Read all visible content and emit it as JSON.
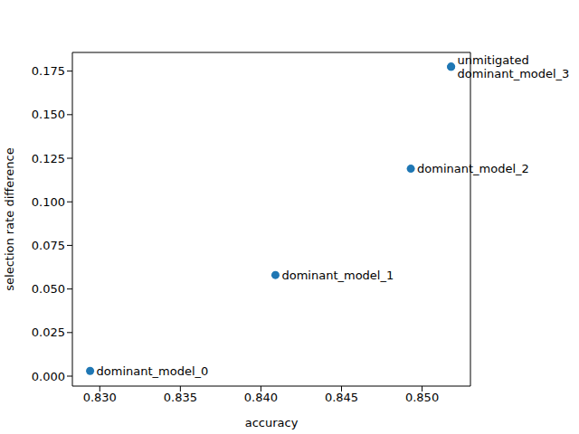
{
  "chart_data": {
    "type": "scatter",
    "xlabel": "accuracy",
    "ylabel": "selection rate difference",
    "x": [
      0.8518,
      0.8294,
      0.8409,
      0.8493,
      0.8518
    ],
    "values": [
      0.1775,
      0.003,
      0.058,
      0.119,
      0.1775
    ],
    "labels": [
      "unmitigated",
      "dominant_model_0",
      "dominant_model_1",
      "dominant_model_2",
      "dominant_model_3"
    ],
    "color": "#1f77b4",
    "marker": "circle",
    "xlim": [
      0.8283,
      0.853
    ],
    "xticks": [
      {
        "value": 0.83,
        "label": "0.830"
      },
      0.835,
      {
        "value": 0.84,
        "label": "0.840"
      },
      0.845,
      {
        "value": 0.85,
        "label": "0.850"
      }
    ],
    "ylim": [
      -0.0057,
      0.1857
    ],
    "yticks": [
      {
        "value": 0,
        "label": "0.000"
      },
      0.025,
      {
        "value": 0.05,
        "label": "0.050"
      },
      0.075,
      {
        "value": 0.1,
        "label": "0.100"
      },
      0.125,
      {
        "value": 0.15,
        "label": "0.150"
      },
      0.175
    ],
    "grid": false
  }
}
